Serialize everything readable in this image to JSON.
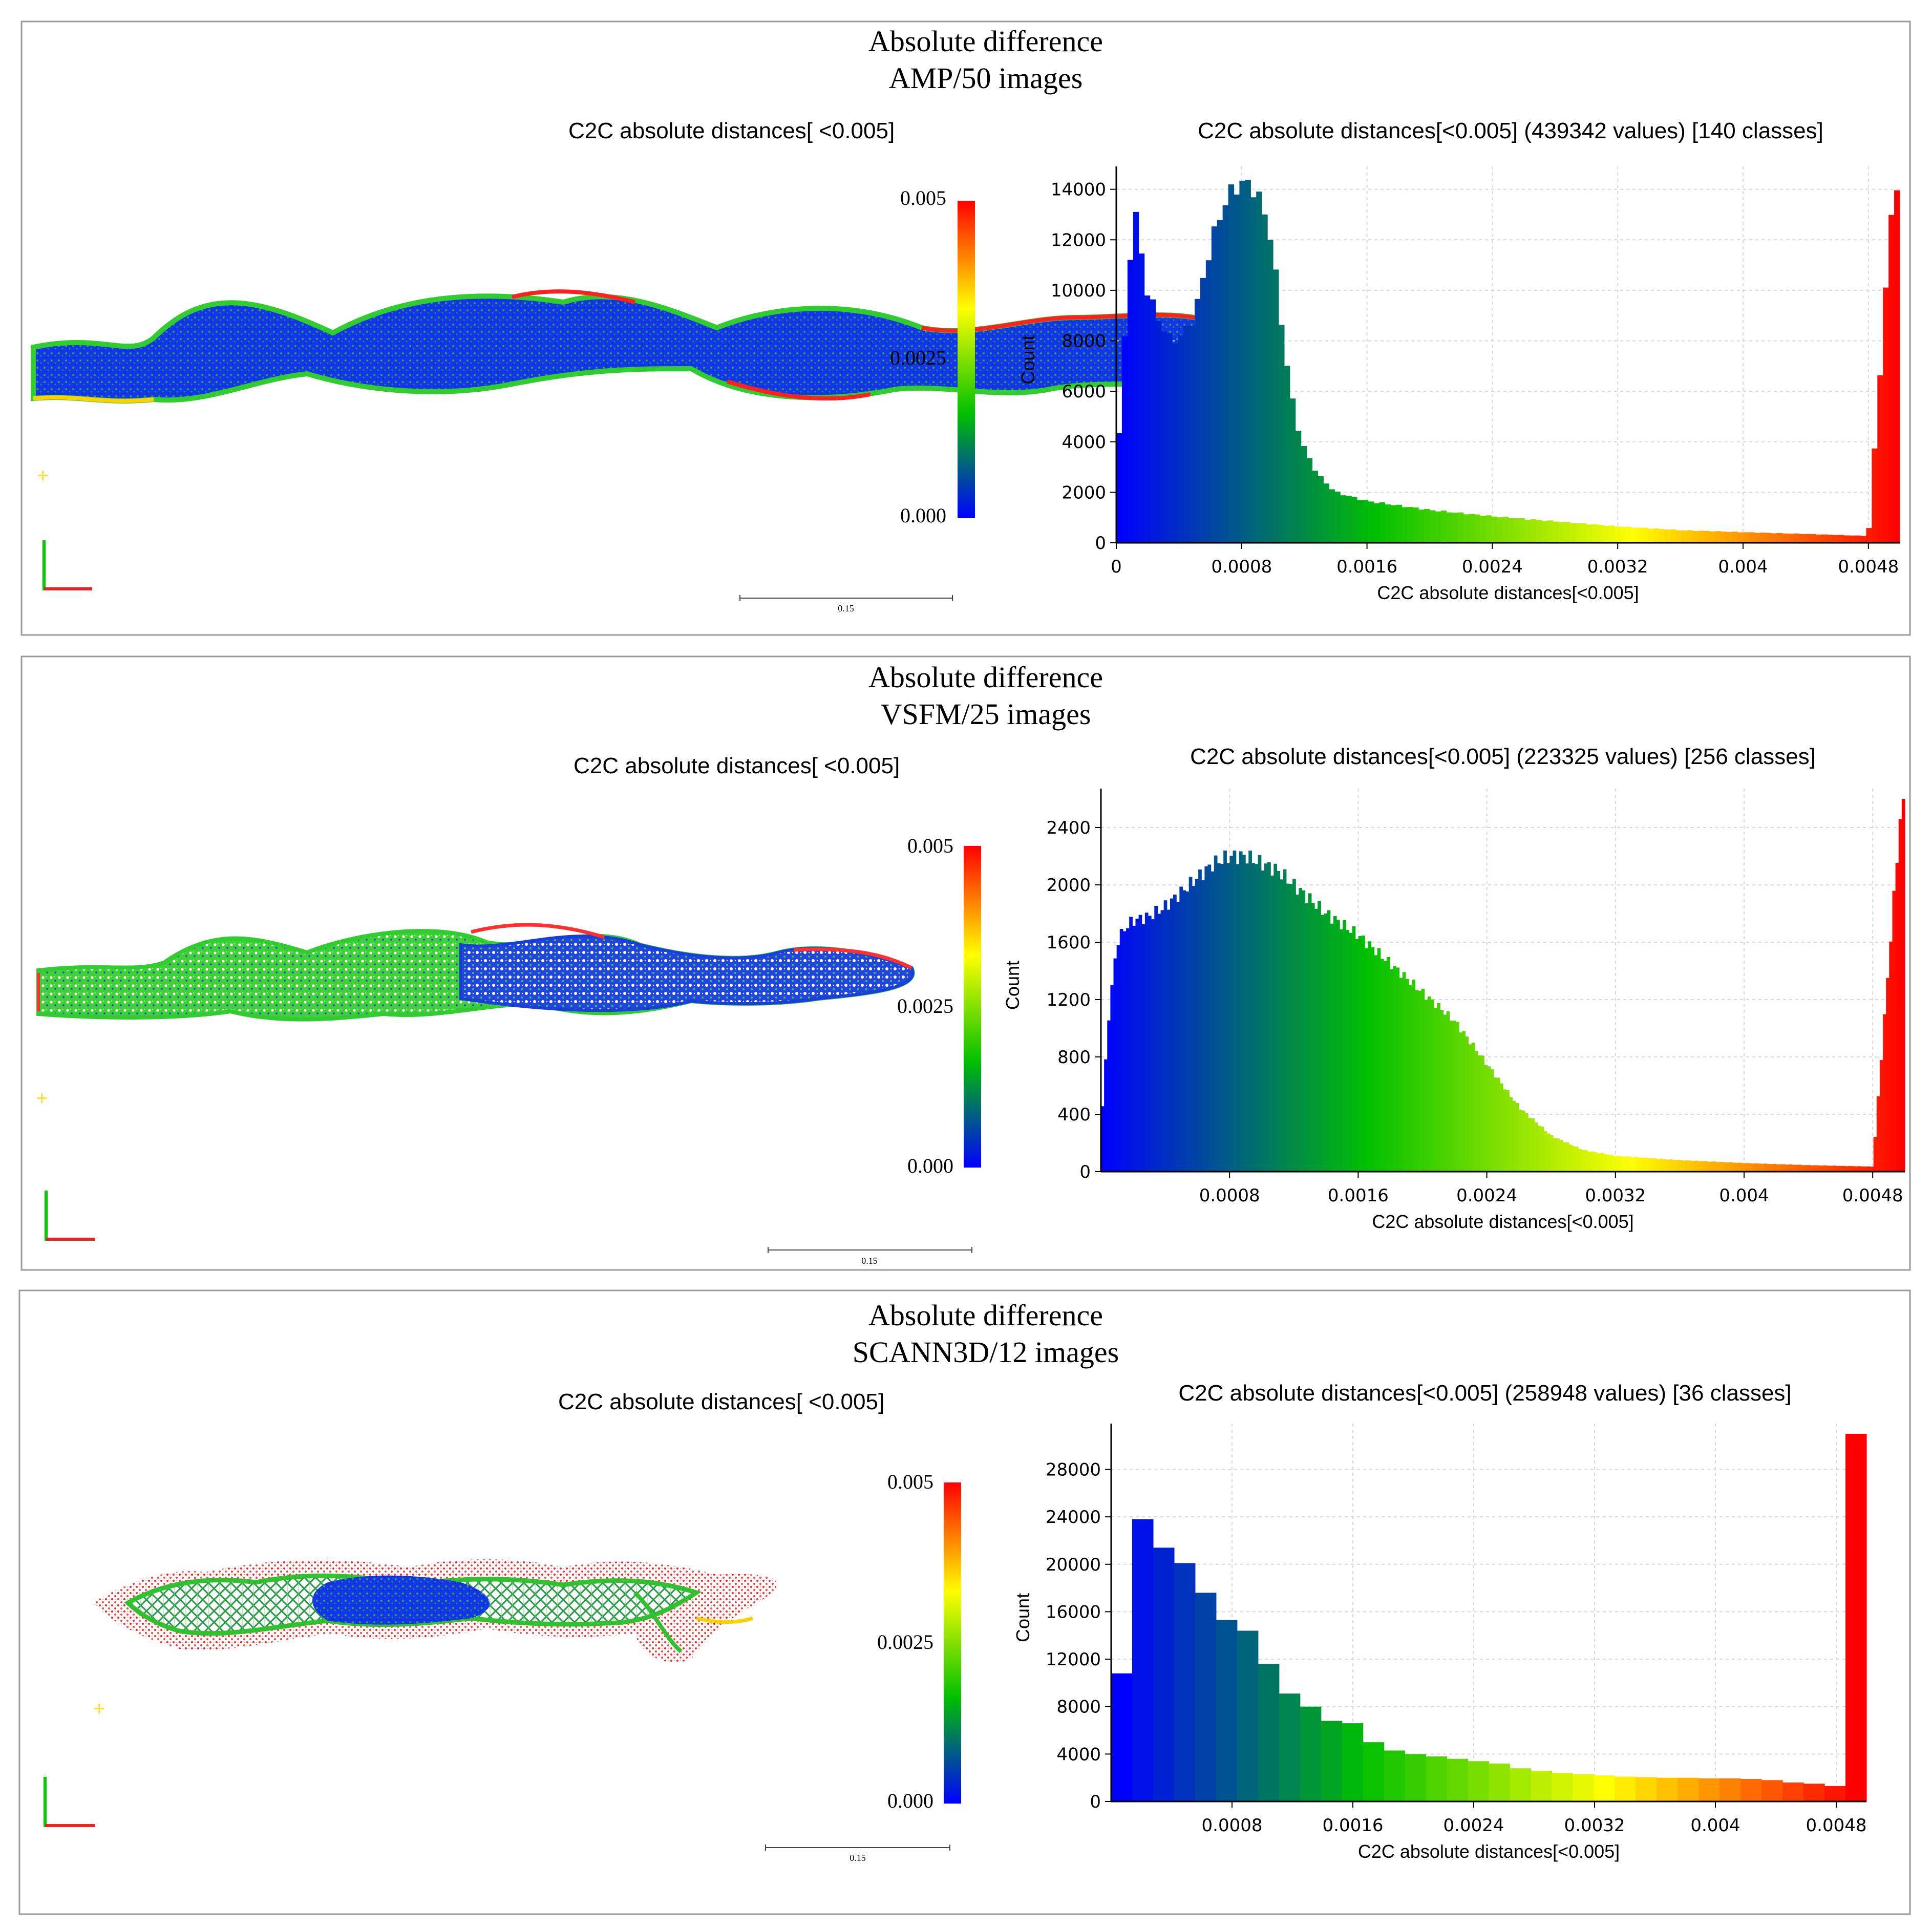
{
  "panels": [
    {
      "title_line1": "Absolute difference",
      "title_line2": "AMP/50 images",
      "cloud_title": "C2C absolute distances[ <0.005]",
      "colorbar_labels": [
        "0.005",
        "0.0025",
        "0.000"
      ],
      "scale_label": "0.15"
    },
    {
      "title_line1": "Absolute difference",
      "title_line2": "VSFM/25 images",
      "cloud_title": "C2C absolute distances[ <0.005]",
      "colorbar_labels": [
        "0.005",
        "0.0025",
        "0.000"
      ],
      "scale_label": "0.15"
    },
    {
      "title_line1": "Absolute difference",
      "title_line2": "SCANN3D/12 images",
      "cloud_title": "C2C absolute distances[ <0.005]",
      "colorbar_labels": [
        "0.005",
        "0.0025",
        "0.000"
      ],
      "scale_label": "0.15"
    }
  ],
  "colormap": [
    "#0000ff",
    "#00c000",
    "#ffff00",
    "#ff0000"
  ],
  "chart_data": [
    {
      "type": "bar",
      "title": "C2C absolute distances[<0.005] (439342 values)  [140 classes]",
      "xlabel": "C2C absolute distances[<0.005]",
      "ylabel": "Count",
      "xlim": [
        0,
        0.005
      ],
      "ylim": [
        0,
        14500
      ],
      "xticks": [
        "0",
        "0.0008",
        "0.0016",
        "0.0024",
        "0.0032",
        "0.004",
        "0.0048"
      ],
      "xtick_values": [
        0,
        0.0008,
        0.0016,
        0.0024,
        0.0032,
        0.004,
        0.0048
      ],
      "yticks": [
        "0",
        "2000",
        "4000",
        "6000",
        "8000",
        "10000",
        "12000",
        "14000"
      ],
      "ytick_values": [
        0,
        2000,
        4000,
        6000,
        8000,
        10000,
        12000,
        14000
      ],
      "bins": 140,
      "profile_x": [
        0,
        4e-05,
        8e-05,
        0.00012,
        0.00015,
        0.00018,
        0.00022,
        0.00028,
        0.00035,
        0.00042,
        0.0005,
        0.00058,
        0.00065,
        0.00072,
        0.00078,
        0.00083,
        0.00088,
        0.00093,
        0.00098,
        0.00103,
        0.00108,
        0.00113,
        0.00118,
        0.00125,
        0.0013,
        0.0014,
        0.0016,
        0.002,
        0.0024,
        0.0028,
        0.0032,
        0.0036,
        0.004,
        0.0044,
        0.0048,
        0.00496
      ],
      "profile_y": [
        2600,
        6500,
        11000,
        13100,
        12000,
        10300,
        9600,
        8700,
        8000,
        8200,
        9000,
        11200,
        12800,
        13800,
        14200,
        14250,
        14000,
        13400,
        12300,
        10000,
        7400,
        5400,
        4000,
        3100,
        2600,
        2000,
        1650,
        1300,
        1050,
        850,
        650,
        500,
        420,
        350,
        270,
        14200
      ]
    },
    {
      "type": "bar",
      "title": "C2C absolute distances[<0.005] (223325 values)  [256 classes]",
      "xlabel": "C2C absolute distances[<0.005]",
      "ylabel": "Count",
      "xlim": [
        0,
        0.005
      ],
      "ylim": [
        0,
        2600
      ],
      "xticks": [
        "0.0008",
        "0.0016",
        "0.0024",
        "0.0032",
        "0.004",
        "0.0048"
      ],
      "xtick_values": [
        0.0008,
        0.0016,
        0.0024,
        0.0032,
        0.004,
        0.0048
      ],
      "yticks": [
        "0",
        "400",
        "800",
        "1200",
        "1600",
        "2000",
        "2400"
      ],
      "ytick_values": [
        0,
        400,
        800,
        1200,
        1600,
        2000,
        2400
      ],
      "bins": 256,
      "profile_x": [
        0,
        5e-05,
        0.0001,
        0.00015,
        0.0002,
        0.0003,
        0.0004,
        0.0005,
        0.0006,
        0.0007,
        0.0008,
        0.0009,
        0.001,
        0.0011,
        0.0012,
        0.0014,
        0.0016,
        0.0018,
        0.002,
        0.0022,
        0.0024,
        0.0026,
        0.0028,
        0.003,
        0.0032,
        0.0036,
        0.004,
        0.0044,
        0.0048,
        0.00498
      ],
      "profile_y": [
        300,
        1100,
        1600,
        1700,
        1750,
        1780,
        1850,
        1950,
        2050,
        2150,
        2200,
        2200,
        2150,
        2100,
        2000,
        1800,
        1650,
        1450,
        1250,
        1050,
        750,
        450,
        250,
        150,
        110,
        80,
        60,
        45,
        35,
        2600
      ]
    },
    {
      "type": "bar",
      "title": "C2C absolute distances[<0.005] (258948 values)  [36 classes]",
      "xlabel": "C2C absolute distances[<0.005]",
      "ylabel": "Count",
      "xlim": [
        0,
        0.005
      ],
      "ylim": [
        0,
        31000
      ],
      "xticks": [
        "0.0008",
        "0.0016",
        "0.0024",
        "0.0032",
        "0.004",
        "0.0048"
      ],
      "xtick_values": [
        0.0008,
        0.0016,
        0.0024,
        0.0032,
        0.004,
        0.0048
      ],
      "yticks": [
        "0",
        "4000",
        "8000",
        "12000",
        "16000",
        "20000",
        "24000",
        "28000"
      ],
      "ytick_values": [
        0,
        4000,
        8000,
        12000,
        16000,
        20000,
        24000,
        28000
      ],
      "bins": 36,
      "values": [
        10800,
        23800,
        21400,
        20100,
        17600,
        15300,
        14400,
        11600,
        9100,
        8000,
        6800,
        6600,
        5000,
        4300,
        4000,
        3800,
        3600,
        3400,
        3200,
        2800,
        2600,
        2400,
        2300,
        2200,
        2100,
        2050,
        2000,
        2000,
        1950,
        1950,
        1900,
        1800,
        1600,
        1500,
        1300,
        31000
      ]
    }
  ]
}
